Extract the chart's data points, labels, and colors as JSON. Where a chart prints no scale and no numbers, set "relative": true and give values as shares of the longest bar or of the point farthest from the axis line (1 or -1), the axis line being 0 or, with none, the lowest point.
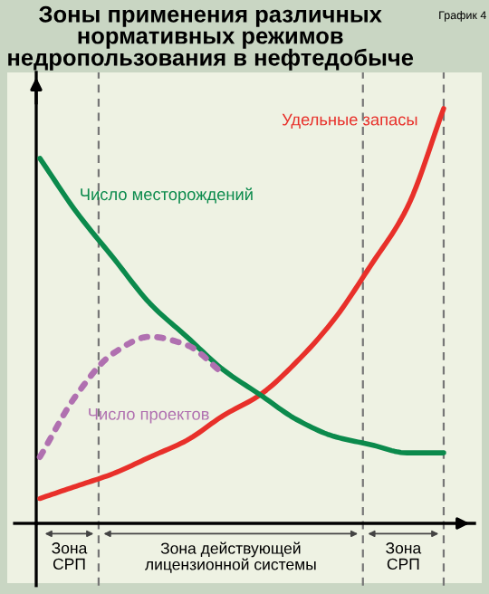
{
  "chart_data": {
    "type": "line",
    "title": "Зоны применения различных нормативных режимов недропользования в нефтедобыче",
    "annotations": [
      "График 4",
      "Зона\nСРП",
      "Зона действующей\nлицензионной системы",
      "Зона\nСРП"
    ],
    "relative": true,
    "categories": [
      null,
      null,
      null,
      null,
      null,
      null,
      null,
      null,
      null,
      null,
      null,
      null
    ],
    "series": [
      {
        "name": "Удельные запасы",
        "color": "#e8302a",
        "values": [
          0.06,
          0.09,
          0.12,
          0.16,
          0.2,
          0.26,
          0.31,
          0.39,
          0.49,
          0.62,
          0.76,
          1.0
        ]
      },
      {
        "name": "Число месторождений",
        "color": "#0b8a4c",
        "values": [
          0.88,
          0.75,
          0.64,
          0.53,
          0.45,
          0.37,
          0.31,
          0.25,
          0.21,
          0.19,
          0.17,
          0.17
        ]
      },
      {
        "name": "Число проектов",
        "color": "#b070b0",
        "line_style": "dotted",
        "values": [
          0.16,
          0.31,
          0.41,
          0.45,
          0.43,
          0.36,
          null,
          null,
          null,
          null,
          null,
          null
        ]
      }
    ],
    "legend": false
  }
}
